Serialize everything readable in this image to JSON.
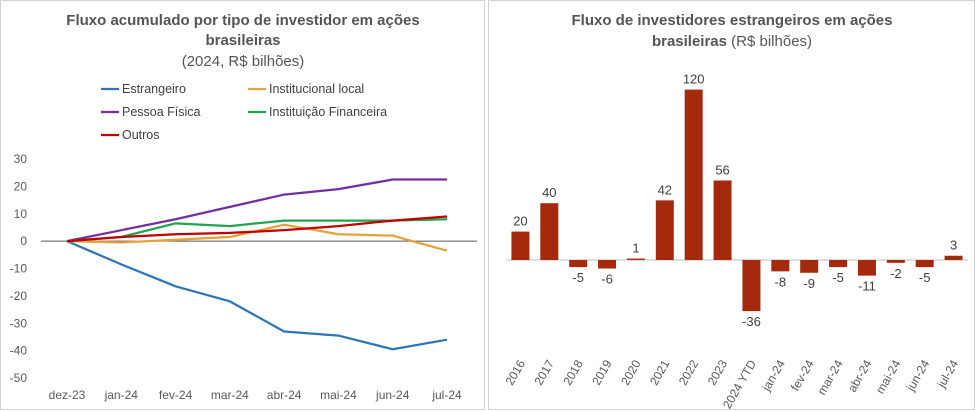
{
  "chart_data": [
    {
      "type": "line",
      "title_line1": "Fluxo acumulado por tipo de investidor em ações",
      "title_line2": "brasileiras",
      "subtitle": "(2024, R$ bilhões)",
      "categories": [
        "dez-23",
        "jan-24",
        "fev-24",
        "mar-24",
        "abr-24",
        "mai-24",
        "jun-24",
        "jul-24"
      ],
      "yticks": [
        "30",
        "20",
        "10",
        "0",
        "-10",
        "-20",
        "-30",
        "-40",
        "-50"
      ],
      "ylim": [
        -50,
        30
      ],
      "grid": false,
      "legend_position": "top",
      "series": [
        {
          "name": "Estrangeiro",
          "color": "#2e75b6",
          "values": [
            0,
            -8.5,
            -16.5,
            -22,
            -33,
            -34.5,
            -39.5,
            -36
          ]
        },
        {
          "name": "Institucional local",
          "color": "#e3a33a",
          "values": [
            0,
            -0.5,
            0.5,
            1.5,
            6,
            2.5,
            2,
            -3.5
          ]
        },
        {
          "name": "Pessoa Física",
          "color": "#7030a0",
          "values": [
            0,
            4,
            8,
            12.5,
            17,
            19,
            22.5,
            22.5
          ]
        },
        {
          "name": "Instituição Financeira",
          "color": "#21a350",
          "values": [
            0,
            1.5,
            6.5,
            5.5,
            7.5,
            7.5,
            7.5,
            8
          ]
        },
        {
          "name": "Outros",
          "color": "#c00000",
          "values": [
            0,
            1.5,
            2.5,
            3,
            4,
            5.5,
            7.5,
            9
          ]
        }
      ]
    },
    {
      "type": "bar",
      "title_line1": "Fluxo de investidores estrangeiros em ações",
      "title_bold": "brasileiras",
      "title_rest": " (R$ bilhões)",
      "color": "#a52a0d",
      "categories": [
        "2016",
        "2017",
        "2018",
        "2019",
        "2020",
        "2021",
        "2022",
        "2023",
        "2024 YTD",
        "jan-24",
        "fev-24",
        "mar-24",
        "abr-24",
        "mai-24",
        "jun-24",
        "jul-24"
      ],
      "values": [
        20,
        40,
        -5,
        -6,
        1,
        42,
        120,
        56,
        -36,
        -8,
        -9,
        -5,
        -11,
        -2,
        -5,
        3
      ],
      "labels": [
        "20",
        "40",
        "-5",
        "-6",
        "1",
        "42",
        "120",
        "56",
        "-36",
        "-8",
        "-9",
        "-5",
        "-11",
        "-2",
        "-5",
        "3"
      ]
    }
  ]
}
